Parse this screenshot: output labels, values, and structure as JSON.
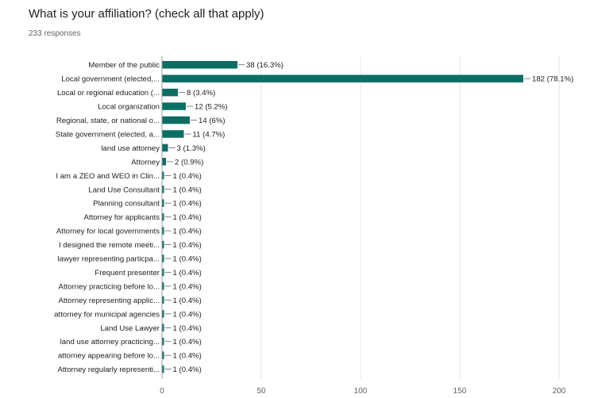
{
  "header": {
    "title": "What is your affiliation? (check all that apply)",
    "responses": "233 responses"
  },
  "colors": {
    "bar": "#0b6e63",
    "grid": "#e6e6e6",
    "axis": "#9e9e9e",
    "text": "#202124",
    "muted": "#5f6368"
  },
  "chart_data": {
    "type": "bar",
    "orientation": "horizontal",
    "categories": [
      "Member of the public",
      "Local government (elected,...",
      "Local or regional education (...",
      "Local organization",
      "Regional, state, or national o...",
      "State government (elected, a...",
      "land use attorney",
      "Attorney",
      "I am a ZEO and WEO in Clin...",
      "Land Use Consultant",
      "Planning consultant",
      "Attorney for applicants",
      "Attorney for local governments",
      "I designed the remote meeti...",
      "lawyer representing particpa...",
      "Frequent presenter",
      "Attorney practicing before lo...",
      "Attorney representing applic...",
      "attorney for municipal agencies",
      "Land Use Lawyer",
      "land use attorney practicing...",
      "attorney appearing before lo...",
      "Attorney regularly representi..."
    ],
    "values": [
      38,
      182,
      8,
      12,
      14,
      11,
      3,
      2,
      1,
      1,
      1,
      1,
      1,
      1,
      1,
      1,
      1,
      1,
      1,
      1,
      1,
      1,
      1
    ],
    "value_labels": [
      "38 (16.3%)",
      "182 (78.1%)",
      "8 (3.4%)",
      "12 (5.2%)",
      "14 (6%)",
      "11 (4.7%)",
      "3 (1.3%)",
      "2 (0.9%)",
      "1 (0.4%)",
      "1 (0.4%)",
      "1 (0.4%)",
      "1 (0.4%)",
      "1 (0.4%)",
      "1 (0.4%)",
      "1 (0.4%)",
      "1 (0.4%)",
      "1 (0.4%)",
      "1 (0.4%)",
      "1 (0.4%)",
      "1 (0.4%)",
      "1 (0.4%)",
      "1 (0.4%)",
      "1 (0.4%)"
    ],
    "x_ticks": [
      0,
      50,
      100,
      150,
      200
    ],
    "xlim": [
      0,
      200
    ],
    "grid": true,
    "legend": "none"
  }
}
